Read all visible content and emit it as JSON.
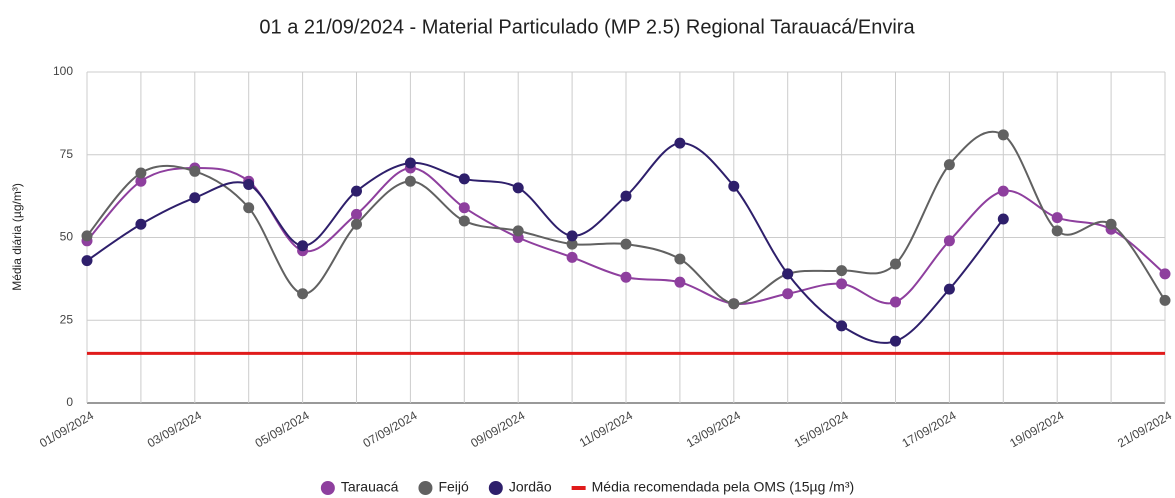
{
  "chart_data": {
    "type": "line",
    "title": "01 a 21/09/2024 - Material Particulado (MP 2.5) Regional Tarauacá/Envira",
    "y_label": "Média diária (µg/m³)",
    "categories": [
      "01/09/2024",
      null,
      "03/09/2024",
      null,
      "05/09/2024",
      null,
      "07/09/2024",
      null,
      "09/09/2024",
      null,
      "11/09/2024",
      null,
      "13/09/2024",
      null,
      "15/09/2024",
      null,
      "17/09/2024",
      null,
      "19/09/2024",
      null,
      "21/09/2024"
    ],
    "ylim": [
      0,
      100
    ],
    "yticks": [
      0,
      25,
      50,
      75,
      100
    ],
    "grid": true,
    "smooth": true,
    "legend": "bottom",
    "series": [
      {
        "name": "Tarauacá",
        "color": "#8e3f9e",
        "markers": true,
        "values": [
          49,
          67,
          71,
          67,
          46,
          57,
          71,
          59,
          50,
          44,
          38,
          36.5,
          30,
          33,
          36,
          30.5,
          49,
          64,
          56,
          52.5,
          39
        ]
      },
      {
        "name": "Feijó",
        "color": "#616161",
        "markers": true,
        "values": [
          50.5,
          69.5,
          70,
          59,
          33,
          54,
          67,
          55,
          52,
          48,
          48,
          43.5,
          30,
          39,
          40,
          42,
          72,
          81,
          52,
          54,
          31
        ]
      },
      {
        "name": "Jordão",
        "color": "#2e1f6b",
        "markers": true,
        "values": [
          43,
          54,
          62,
          66,
          47.5,
          64,
          72.5,
          67.7,
          65,
          50.5,
          62.5,
          78.5,
          65.5,
          39,
          23.3,
          18.7,
          34.4,
          55.6,
          null,
          null,
          null
        ]
      },
      {
        "name": "Média recomendada pela OMS (15µg /m³)",
        "color": "#e01b1b",
        "markers": false,
        "values": [
          15,
          15,
          15,
          15,
          15,
          15,
          15,
          15,
          15,
          15,
          15,
          15,
          15,
          15,
          15,
          15,
          15,
          15,
          15,
          15,
          15
        ]
      }
    ]
  }
}
